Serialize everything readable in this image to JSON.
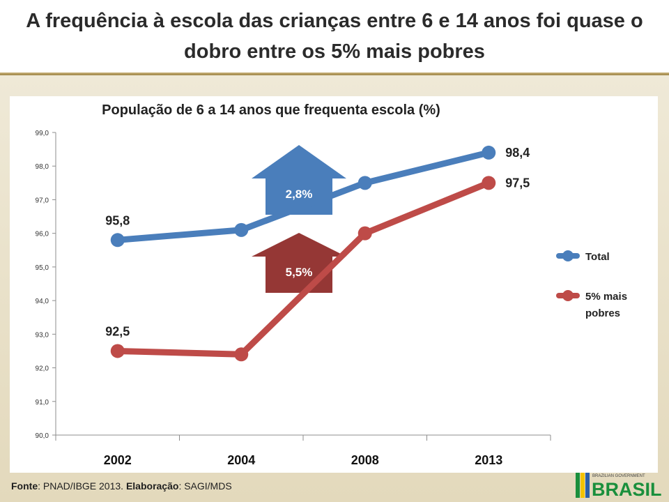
{
  "slide": {
    "title": "A frequência à escola das crianças entre 6 e 14 anos foi quase o dobro entre os 5% mais pobres",
    "footer": {
      "source_label": "Fonte",
      "source_text": ": PNAD/IBGE 2013. ",
      "credit_label": "Elaboração",
      "credit_text": ": SAGI/MDS"
    },
    "logo": {
      "top_text": "BRAZILIAN GOVERNMENT",
      "word": "BRASIL"
    }
  },
  "chart_data": {
    "type": "line",
    "title": "População de 6 a 14 anos que frequenta escola (%)",
    "categories": [
      "2002",
      "2004",
      "2008",
      "2013"
    ],
    "ylim": [
      90.0,
      99.0
    ],
    "yticks": [
      "90,0",
      "91,0",
      "92,0",
      "93,0",
      "94,0",
      "95,0",
      "96,0",
      "97,0",
      "98,0",
      "99,0"
    ],
    "legend_position": "right",
    "series": [
      {
        "name": "Total",
        "color": "#4a7ebb",
        "values": [
          95.8,
          96.1,
          97.5,
          98.4
        ],
        "labels": [
          "95,8",
          "",
          "",
          "98,4"
        ]
      },
      {
        "name": "5% mais pobres",
        "color": "#be4b48",
        "values": [
          92.5,
          92.4,
          96.0,
          97.5
        ],
        "labels": [
          "92,5",
          "",
          "",
          "97,5"
        ]
      }
    ],
    "annotations": [
      {
        "text": "2,8%",
        "series": "Total",
        "color": "#4a7ebb"
      },
      {
        "text": "5,5%",
        "series": "5% mais pobres",
        "color": "#953735"
      }
    ]
  }
}
